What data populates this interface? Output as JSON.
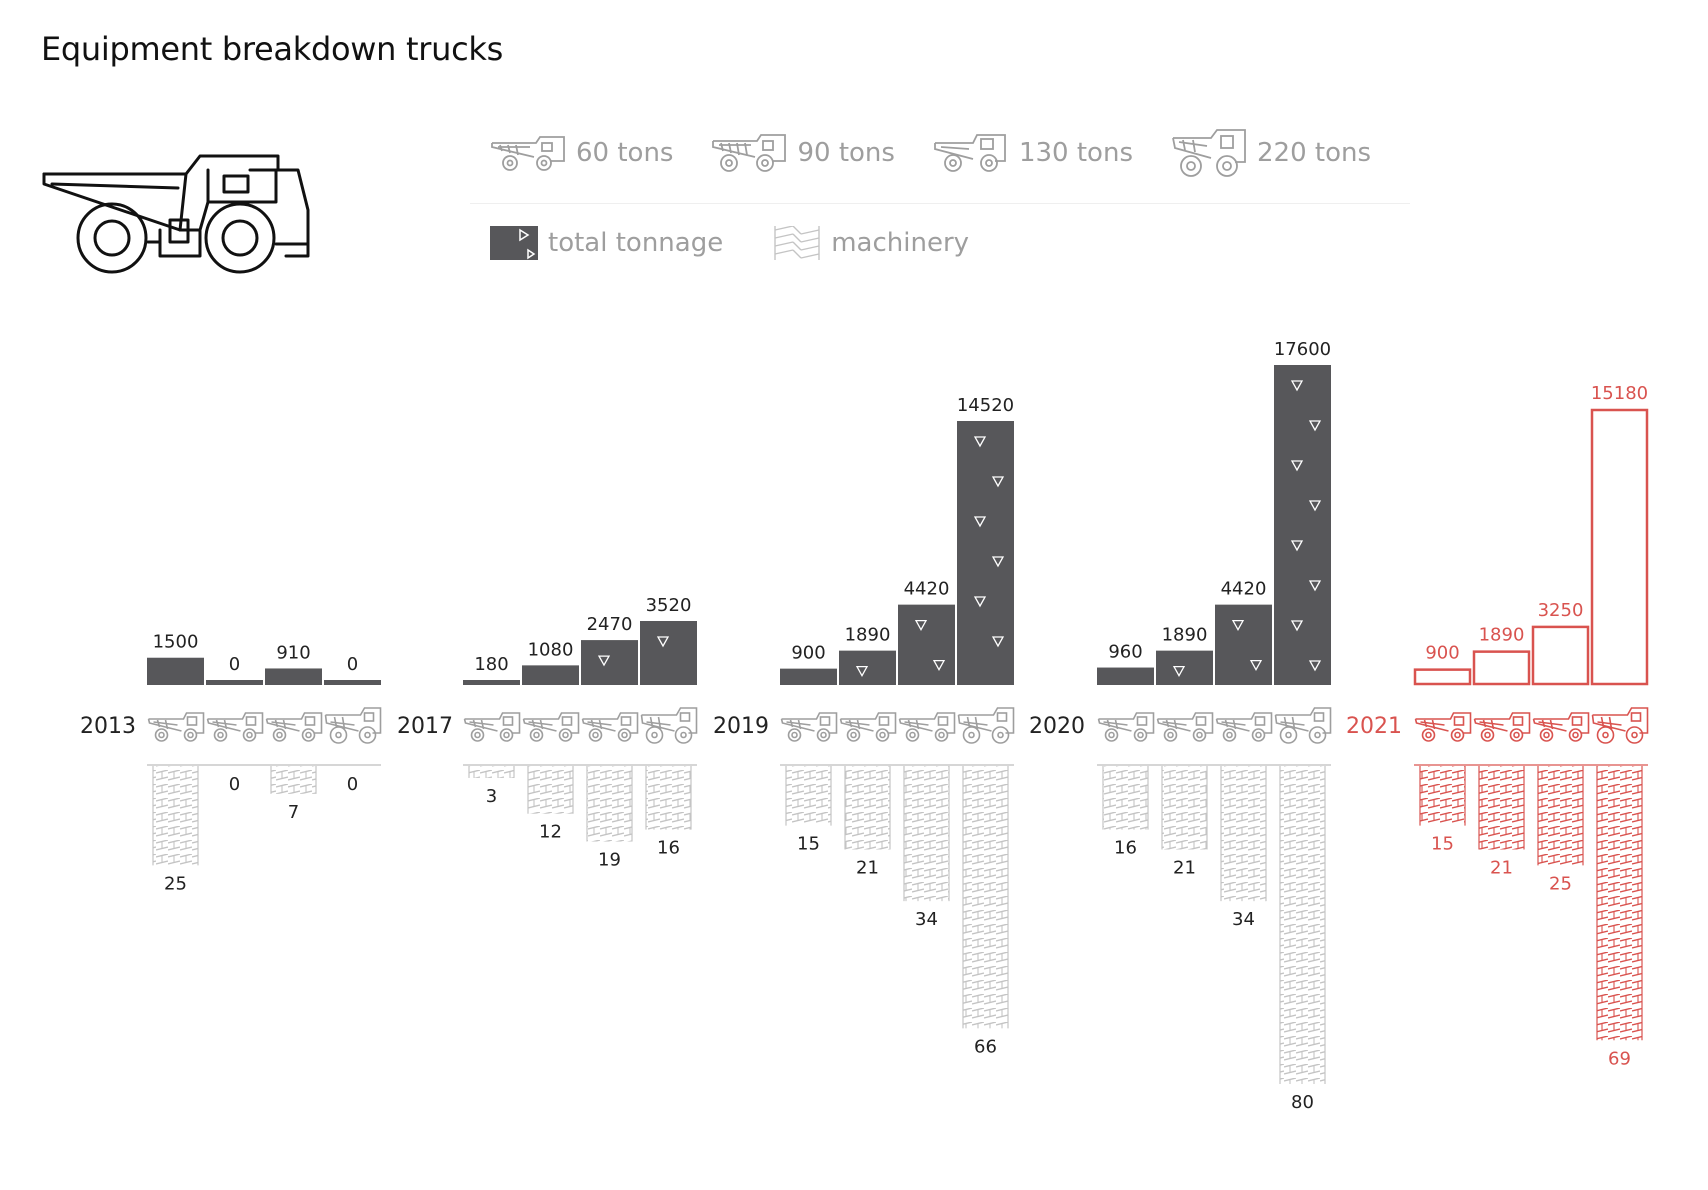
{
  "title": "Equipment breakdown trucks",
  "legend": {
    "truck_classes": [
      {
        "label": "60 tons",
        "icon": "truck-60-icon"
      },
      {
        "label": "90 tons",
        "icon": "truck-90-icon"
      },
      {
        "label": "130 tons",
        "icon": "truck-130-icon"
      },
      {
        "label": "220 tons",
        "icon": "truck-220-icon"
      }
    ],
    "total_tonnage": "total tonnage",
    "machinery": "machinery"
  },
  "colors": {
    "bar": "#57575a",
    "machinery": "#c4c4c4",
    "highlight": "#d9534f",
    "text": "#222222",
    "legend_text": "#9e9e9e"
  },
  "chart_data": {
    "type": "bar",
    "title": "Equipment breakdown trucks",
    "categories": [
      "60 tons",
      "90 tons",
      "130 tons",
      "220 tons"
    ],
    "groups": [
      {
        "year": "2013",
        "total_tonnage": [
          1500,
          0,
          910,
          0
        ],
        "machinery": [
          25,
          0,
          7,
          0
        ],
        "highlight": false
      },
      {
        "year": "2017",
        "total_tonnage": [
          180,
          1080,
          2470,
          3520
        ],
        "machinery": [
          3,
          12,
          19,
          16
        ],
        "highlight": false
      },
      {
        "year": "2019",
        "total_tonnage": [
          900,
          1890,
          4420,
          14520
        ],
        "machinery": [
          15,
          21,
          34,
          66
        ],
        "highlight": false
      },
      {
        "year": "2020",
        "total_tonnage": [
          960,
          1890,
          4420,
          17600
        ],
        "machinery": [
          16,
          21,
          34,
          80
        ],
        "highlight": false
      },
      {
        "year": "2021",
        "total_tonnage": [
          900,
          1890,
          3250,
          15180
        ],
        "machinery": [
          15,
          21,
          25,
          69
        ],
        "highlight": true
      }
    ],
    "series": [
      {
        "name": "total tonnage"
      },
      {
        "name": "machinery"
      }
    ],
    "ylim_tonnage": [
      0,
      17600
    ],
    "ylim_machinery": [
      0,
      80
    ],
    "grid": false
  }
}
